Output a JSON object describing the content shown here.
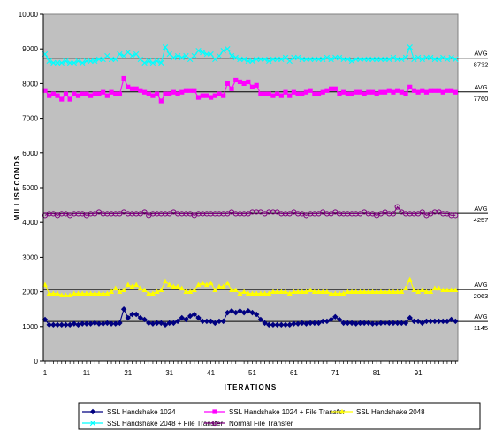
{
  "chart_data": {
    "type": "line",
    "title": "",
    "xlabel": "ITERATIONS",
    "ylabel": "MILLISECONDS",
    "xlim": [
      1,
      100
    ],
    "ylim": [
      0,
      10000
    ],
    "x_ticks": [
      "1",
      "11",
      "21",
      "31",
      "41",
      "51",
      "61",
      "71",
      "81",
      "91"
    ],
    "y_ticks": [
      "0",
      "1000",
      "2000",
      "3000",
      "4000",
      "5000",
      "6000",
      "7000",
      "8000",
      "9000",
      "10000"
    ],
    "grid": false,
    "plot_background": "#c0c0c0",
    "legend_position": "bottom",
    "averages": [
      {
        "label": "AVG",
        "value": 8732,
        "value_text": "8732"
      },
      {
        "label": "AVG",
        "value": 7760,
        "value_text": "7760"
      },
      {
        "label": "AVG",
        "value": 4257,
        "value_text": "4257"
      },
      {
        "label": "AVG",
        "value": 2063,
        "value_text": "2063"
      },
      {
        "label": "AVG",
        "value": 1145,
        "value_text": "1145"
      }
    ],
    "series": [
      {
        "name": "SSL Handshake 1024",
        "color": "#000080",
        "marker": "diamond",
        "values": [
          1200,
          1050,
          1050,
          1050,
          1050,
          1050,
          1050,
          1080,
          1050,
          1080,
          1080,
          1080,
          1100,
          1080,
          1080,
          1100,
          1080,
          1080,
          1100,
          1500,
          1250,
          1350,
          1350,
          1250,
          1200,
          1100,
          1080,
          1100,
          1100,
          1050,
          1100,
          1100,
          1150,
          1250,
          1200,
          1300,
          1350,
          1250,
          1150,
          1150,
          1150,
          1100,
          1150,
          1150,
          1400,
          1450,
          1400,
          1450,
          1400,
          1450,
          1400,
          1350,
          1200,
          1100,
          1050,
          1050,
          1050,
          1050,
          1050,
          1050,
          1080,
          1080,
          1100,
          1080,
          1100,
          1100,
          1100,
          1150,
          1150,
          1200,
          1280,
          1200,
          1100,
          1100,
          1100,
          1080,
          1100,
          1100,
          1100,
          1080,
          1080,
          1100,
          1100,
          1100,
          1100,
          1100,
          1100,
          1100,
          1250,
          1150,
          1150,
          1100,
          1150,
          1150,
          1150,
          1150,
          1150,
          1150,
          1200,
          1150
        ]
      },
      {
        "name": "SSL Handshake 1024 + File Transfer",
        "color": "#ff00ff",
        "marker": "square",
        "values": [
          7800,
          7650,
          7700,
          7650,
          7550,
          7700,
          7550,
          7700,
          7650,
          7700,
          7700,
          7650,
          7700,
          7700,
          7750,
          7650,
          7750,
          7700,
          7700,
          8150,
          7900,
          7850,
          7850,
          7800,
          7750,
          7700,
          7650,
          7700,
          7500,
          7700,
          7700,
          7750,
          7700,
          7750,
          7800,
          7800,
          7800,
          7600,
          7650,
          7650,
          7600,
          7650,
          7700,
          7650,
          8000,
          7850,
          8100,
          8050,
          8000,
          8050,
          7900,
          7950,
          7700,
          7700,
          7700,
          7650,
          7700,
          7650,
          7750,
          7650,
          7750,
          7700,
          7700,
          7750,
          7800,
          7700,
          7700,
          7750,
          7800,
          7850,
          7850,
          7700,
          7750,
          7700,
          7700,
          7750,
          7750,
          7700,
          7750,
          7750,
          7700,
          7750,
          7750,
          7800,
          7750,
          7800,
          7750,
          7700,
          7900,
          7800,
          7750,
          7800,
          7750,
          7800,
          7800,
          7800,
          7750,
          7800,
          7800,
          7750
        ]
      },
      {
        "name": "SSL Handshake 2048",
        "color": "#ffff00",
        "marker": "triangle",
        "values": [
          2200,
          1950,
          1950,
          1950,
          1900,
          1900,
          1900,
          1950,
          1950,
          1950,
          1950,
          1950,
          1950,
          1950,
          1950,
          1950,
          2000,
          2100,
          2000,
          2050,
          2200,
          2150,
          2200,
          2100,
          2050,
          1950,
          1950,
          2000,
          2050,
          2300,
          2200,
          2150,
          2150,
          2100,
          2000,
          2000,
          2050,
          2200,
          2250,
          2200,
          2250,
          2050,
          2150,
          2150,
          2250,
          2050,
          2050,
          1950,
          2000,
          1950,
          1950,
          1950,
          1950,
          1950,
          1950,
          2000,
          2000,
          2000,
          2000,
          1950,
          2000,
          2000,
          2000,
          2000,
          2050,
          2000,
          2000,
          2000,
          2000,
          1950,
          1950,
          1950,
          1950,
          2000,
          2000,
          2000,
          2000,
          2000,
          2000,
          2000,
          2000,
          2000,
          2000,
          2000,
          2000,
          2000,
          2000,
          2100,
          2350,
          2050,
          2000,
          2050,
          2000,
          2000,
          2100,
          2100,
          2050,
          2050,
          2050,
          2050
        ]
      },
      {
        "name": "SSL Handshake 2048 + File Transfer",
        "color": "#00ffff",
        "marker": "x",
        "values": [
          8850,
          8650,
          8600,
          8600,
          8600,
          8650,
          8600,
          8600,
          8650,
          8600,
          8650,
          8650,
          8650,
          8700,
          8700,
          8800,
          8700,
          8700,
          8850,
          8800,
          8900,
          8800,
          8850,
          8700,
          8600,
          8650,
          8600,
          8650,
          8600,
          9050,
          8850,
          8750,
          8800,
          8750,
          8800,
          8700,
          8800,
          8950,
          8900,
          8850,
          8850,
          8700,
          8800,
          8950,
          9000,
          8800,
          8750,
          8700,
          8700,
          8650,
          8650,
          8700,
          8700,
          8700,
          8650,
          8700,
          8700,
          8700,
          8750,
          8650,
          8750,
          8750,
          8700,
          8700,
          8700,
          8700,
          8700,
          8700,
          8750,
          8700,
          8750,
          8750,
          8700,
          8700,
          8650,
          8700,
          8700,
          8700,
          8700,
          8700,
          8700,
          8700,
          8700,
          8700,
          8750,
          8700,
          8700,
          8750,
          9050,
          8700,
          8750,
          8700,
          8750,
          8750,
          8700,
          8700,
          8750,
          8700,
          8750,
          8700
        ]
      },
      {
        "name": "Normal File Transfer",
        "color": "#800080",
        "marker": "circle",
        "values": [
          4200,
          4250,
          4250,
          4200,
          4250,
          4250,
          4200,
          4250,
          4250,
          4250,
          4200,
          4250,
          4250,
          4300,
          4250,
          4250,
          4250,
          4250,
          4250,
          4300,
          4250,
          4250,
          4250,
          4250,
          4300,
          4200,
          4250,
          4250,
          4250,
          4250,
          4250,
          4300,
          4250,
          4250,
          4250,
          4250,
          4200,
          4250,
          4250,
          4250,
          4250,
          4250,
          4250,
          4250,
          4250,
          4300,
          4250,
          4250,
          4250,
          4250,
          4300,
          4300,
          4300,
          4250,
          4300,
          4300,
          4300,
          4250,
          4250,
          4250,
          4300,
          4250,
          4250,
          4200,
          4250,
          4250,
          4250,
          4300,
          4250,
          4250,
          4300,
          4250,
          4250,
          4250,
          4250,
          4250,
          4250,
          4300,
          4250,
          4250,
          4200,
          4250,
          4300,
          4250,
          4250,
          4450,
          4300,
          4250,
          4250,
          4250,
          4250,
          4300,
          4200,
          4250,
          4300,
          4300,
          4250,
          4250,
          4200,
          4200
        ]
      }
    ]
  }
}
